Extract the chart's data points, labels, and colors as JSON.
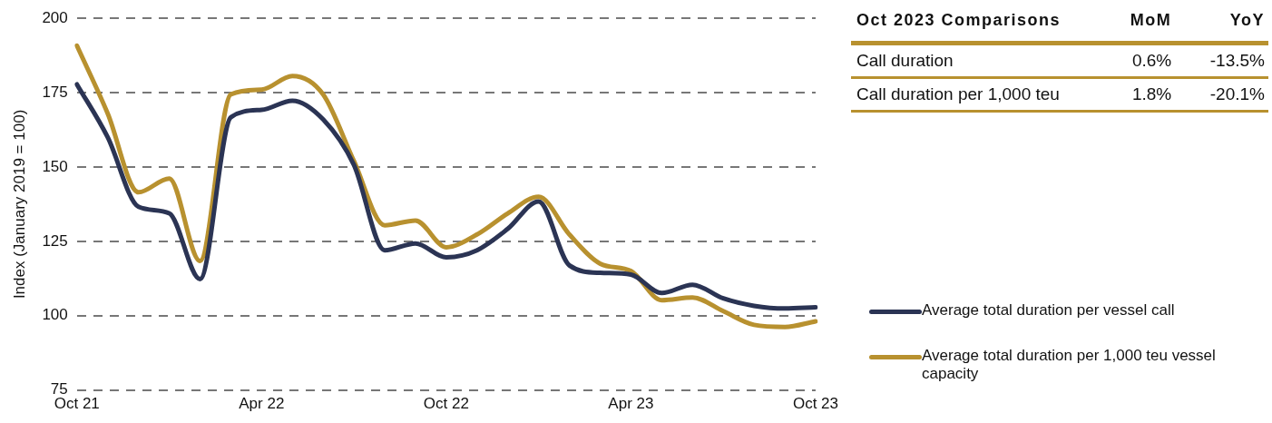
{
  "chart_data": [
    {
      "type": "line",
      "ylabel": "Index (January 2019 = 100)",
      "categories": [
        "Oct 21",
        null,
        null,
        null,
        null,
        null,
        "Apr 22",
        null,
        null,
        null,
        null,
        null,
        "Oct 22",
        null,
        null,
        null,
        null,
        null,
        "Apr 23",
        null,
        null,
        null,
        null,
        null,
        "Oct 23"
      ],
      "series": [
        {
          "name": "Average total duration per vessel call",
          "color": "#2b3454",
          "values": [
            177.8,
            160,
            136.6,
            134.4,
            112.3,
            166.7,
            169.2,
            172.3,
            166,
            150.7,
            122,
            124.3,
            119.6,
            122,
            129.2,
            138.4,
            116.9,
            114.4,
            113.8,
            107.6,
            110.4,
            105.8,
            103.3,
            102.4,
            102.8
          ]
        },
        {
          "name": "Average total duration per 1,000 teu vessel capacity",
          "color": "#b8912f",
          "values": [
            190.8,
            168,
            141.5,
            146.1,
            118.4,
            174.4,
            176,
            180.6,
            174.4,
            152,
            130.4,
            132,
            123,
            127.3,
            134.4,
            140,
            127.3,
            117.5,
            115,
            105.2,
            106.1,
            101.5,
            96.9,
            96.2,
            98.1
          ]
        }
      ],
      "ylim": [
        75,
        200
      ],
      "yticks": [
        75,
        100,
        125,
        150,
        175,
        200
      ],
      "grid": "y",
      "legend": "bottom right",
      "marker": "none",
      "line_style": "solid"
    },
    {
      "type": "other",
      "title": "Oct 2023 Comparisons",
      "categories": [
        "MoM",
        "YoY"
      ],
      "y_categories": [
        "Call duration",
        "Call duration per 1,000 teu"
      ],
      "cell_labels": [
        [
          "0.6%",
          "-13.5%"
        ],
        [
          "1.8%",
          "-20.1%"
        ]
      ]
    }
  ]
}
